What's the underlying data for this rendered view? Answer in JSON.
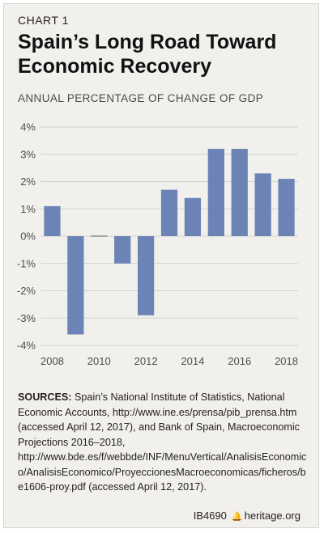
{
  "header": {
    "chart_label": "CHART 1",
    "title": "Spain’s Long Road Toward Economic Recovery",
    "subtitle": "ANNUAL PERCENTAGE OF CHANGE OF GDP"
  },
  "chart_data": {
    "type": "bar",
    "title": "Spain’s Long Road Toward Economic Recovery",
    "subtitle": "ANNUAL PERCENTAGE OF CHANGE OF GDP",
    "x": [
      2008,
      2009,
      2010,
      2011,
      2012,
      2013,
      2014,
      2015,
      2016,
      2017,
      2018
    ],
    "values": [
      1.1,
      -3.6,
      0.0,
      -1.0,
      -2.9,
      1.7,
      1.4,
      3.2,
      3.2,
      2.3,
      2.1
    ],
    "x_ticks": [
      "2008",
      "2010",
      "2012",
      "2014",
      "2016",
      "2018"
    ],
    "y_ticks": [
      "4%",
      "3%",
      "2%",
      "1%",
      "0%",
      "-1%",
      "-2%",
      "-3%",
      "-4%"
    ],
    "ylim": [
      -4,
      4
    ],
    "xlabel": "",
    "ylabel": "",
    "grid": true,
    "bar_color": "#6c84b5"
  },
  "sources": {
    "lead": "SOURCES:",
    "text": " Spain’s National Institute of Statistics, National Economic Accounts, http://www.ine.es/prensa/pib_prensa.htm (accessed April 12, 2017), and Bank of Spain, Macroeconomic Projections 2016–2018, http://www.bde.es/f/webbde/INF/MenuVertical/AnalisisEconomico/AnalisisEconomico/ProyeccionesMacroeconomicas/ficheros/be1606-proy.pdf (accessed April 12, 2017)."
  },
  "footer": {
    "code": "IB4690",
    "site": "heritage.org"
  }
}
